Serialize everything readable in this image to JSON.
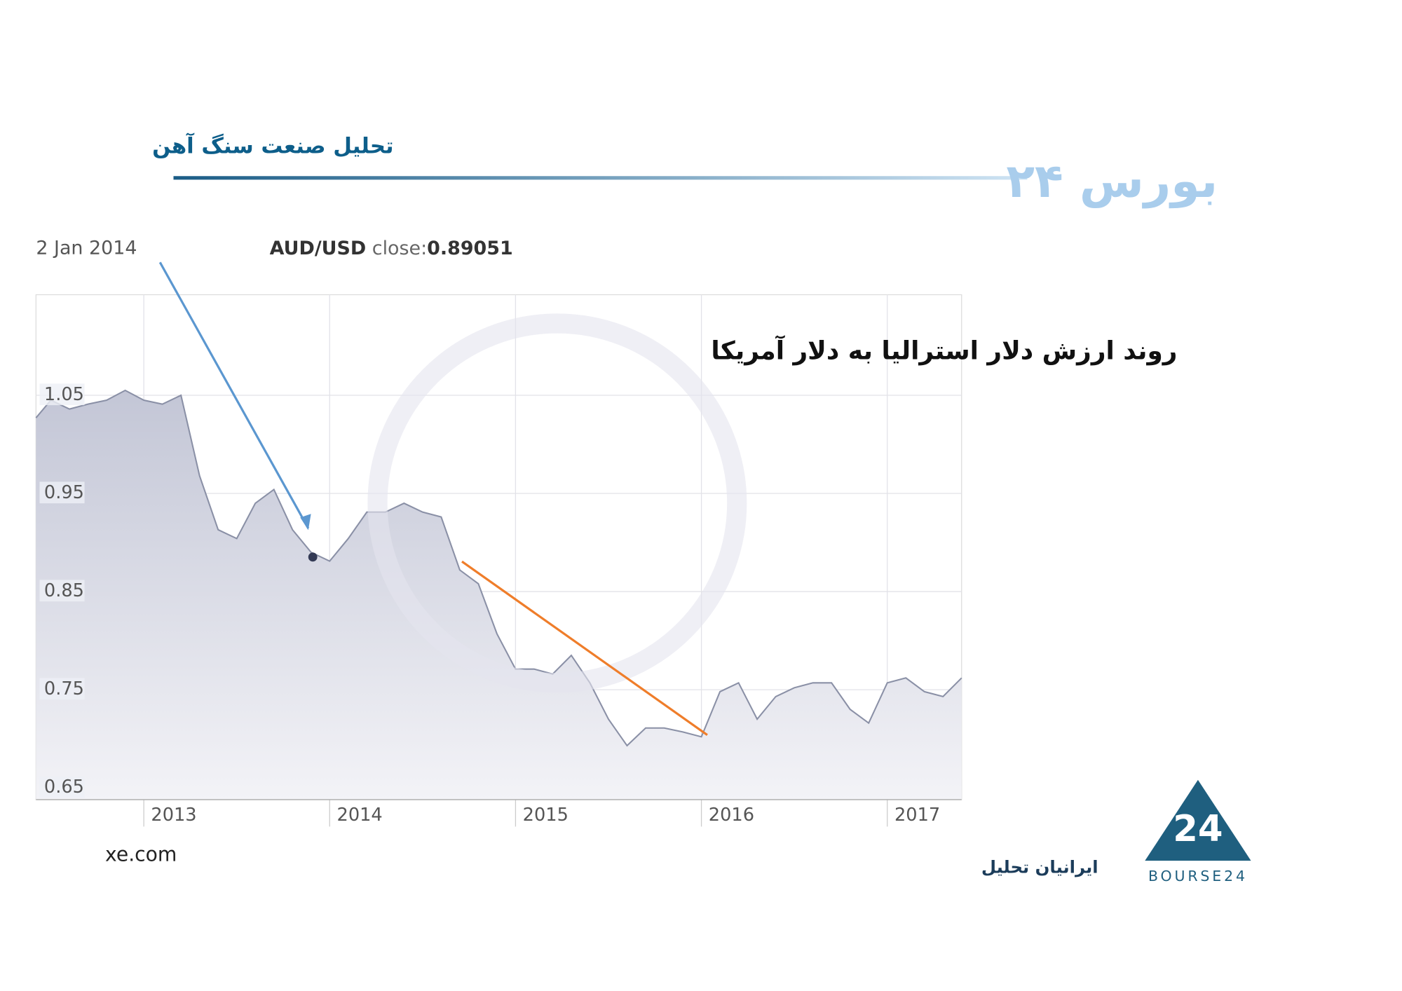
{
  "header": {
    "title": "تحلیل صنعت سنگ آهن",
    "logo": "بورس ۲۴"
  },
  "chart_data": {
    "type": "line",
    "title": "روند ارزش دلار استرالیا به دلار آمریکا",
    "tooltip": {
      "date": "2 Jan 2014",
      "label": "close:",
      "value": 0.89051
    },
    "x": [
      2012.42,
      2012.5,
      2012.6,
      2012.7,
      2012.8,
      2012.9,
      2013.0,
      2013.1,
      2013.2,
      2013.3,
      2013.4,
      2013.5,
      2013.6,
      2013.7,
      2013.8,
      2013.9,
      2014.0,
      2014.1,
      2014.2,
      2014.3,
      2014.4,
      2014.5,
      2014.6,
      2014.7,
      2014.8,
      2014.9,
      2015.0,
      2015.1,
      2015.2,
      2015.3,
      2015.4,
      2015.5,
      2015.6,
      2015.7,
      2015.8,
      2015.9,
      2016.0,
      2016.1,
      2016.2,
      2016.3,
      2016.4,
      2016.5,
      2016.6,
      2016.7,
      2016.8,
      2016.9,
      2017.0,
      2017.1,
      2017.2,
      2017.3,
      2017.4
    ],
    "series": [
      {
        "name": "AUD/USD",
        "color": "#8a90a6",
        "values": [
          1.027,
          1.045,
          1.036,
          1.041,
          1.045,
          1.055,
          1.045,
          1.041,
          1.05,
          0.968,
          0.913,
          0.904,
          0.94,
          0.954,
          0.913,
          0.89,
          0.881,
          0.904,
          0.931,
          0.931,
          0.94,
          0.931,
          0.926,
          0.872,
          0.858,
          0.807,
          0.771,
          0.771,
          0.766,
          0.785,
          0.757,
          0.72,
          0.693,
          0.711,
          0.711,
          0.707,
          0.702,
          0.748,
          0.757,
          0.72,
          0.743,
          0.752,
          0.757,
          0.757,
          0.73,
          0.716,
          0.757,
          0.762,
          0.748,
          0.743,
          0.762
        ]
      }
    ],
    "xlim": [
      2012.42,
      2017.4
    ],
    "xticks": [
      2013,
      2014,
      2015,
      2016,
      2017
    ],
    "ylim": [
      0.638,
      1.1525
    ],
    "yticks": [
      0.65,
      0.75,
      0.85,
      0.95,
      1.05
    ],
    "grid": true,
    "source": "xe.com"
  },
  "footer": {
    "company": "ایرانیان تحلیل",
    "brand": "BOURSE24"
  }
}
